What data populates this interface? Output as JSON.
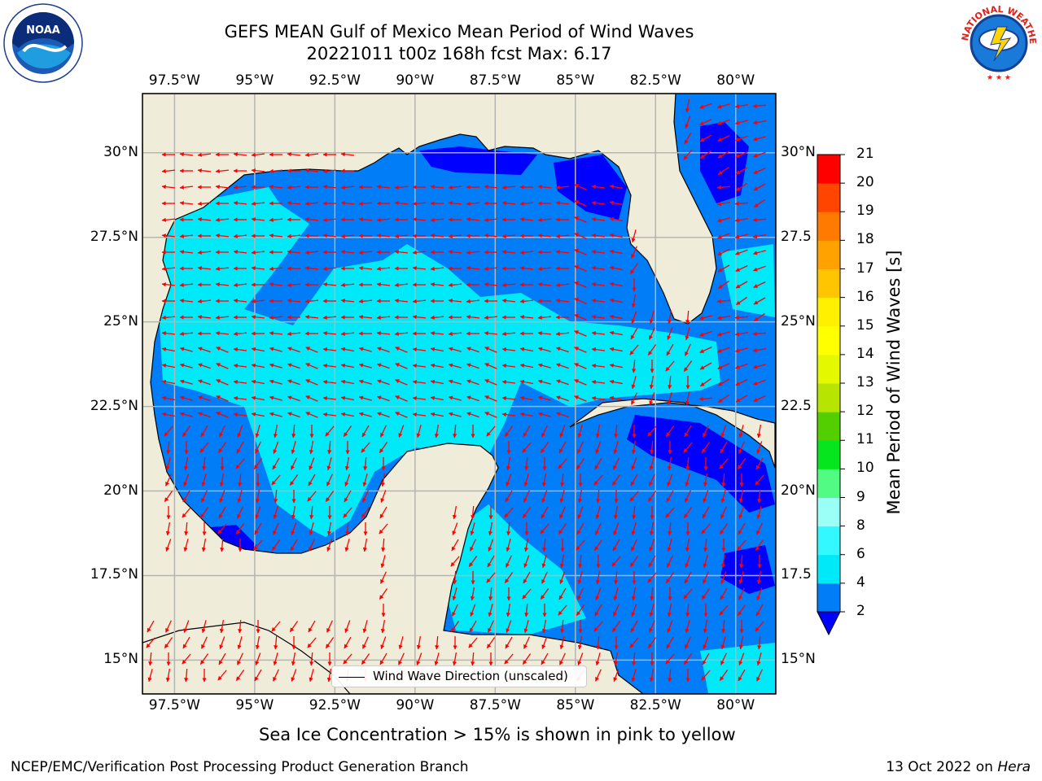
{
  "title": {
    "line1": "GEFS MEAN Gulf of Mexico Mean Period of Wind Waves",
    "line2": "20221011 t00z 168h fcst   Max: 6.17"
  },
  "logos": {
    "left": "NOAA",
    "right": "NATIONAL WEATHER SERVICE"
  },
  "map": {
    "lon_range": [
      -98.5,
      -78.75
    ],
    "lat_range": [
      14.0,
      31.75
    ],
    "lon_labels": [
      {
        "lon": -97.5,
        "text": "97.5°W"
      },
      {
        "lon": -95,
        "text": "95°W"
      },
      {
        "lon": -92.5,
        "text": "92.5°W"
      },
      {
        "lon": -90,
        "text": "90°W"
      },
      {
        "lon": -87.5,
        "text": "87.5°W"
      },
      {
        "lon": -85,
        "text": "85°W"
      },
      {
        "lon": -82.5,
        "text": "82.5°W"
      },
      {
        "lon": -80,
        "text": "80°W"
      }
    ],
    "lat_labels_left": [
      {
        "lat": 30,
        "text": "30°N"
      },
      {
        "lat": 27.5,
        "text": "27.5°N"
      },
      {
        "lat": 25,
        "text": "25°N"
      },
      {
        "lat": 22.5,
        "text": "22.5°N"
      },
      {
        "lat": 20,
        "text": "20°N"
      },
      {
        "lat": 17.5,
        "text": "17.5°N"
      },
      {
        "lat": 15,
        "text": "15°N"
      }
    ],
    "lat_labels_right": [
      {
        "lat": 30,
        "text": "30°N"
      },
      {
        "lat": 27.5,
        "text": "27.5"
      },
      {
        "lat": 25,
        "text": "25°N"
      },
      {
        "lat": 22.5,
        "text": "22.5"
      },
      {
        "lat": 20,
        "text": "20°N"
      },
      {
        "lat": 17.5,
        "text": "17.5"
      },
      {
        "lat": 15,
        "text": "15°N"
      }
    ],
    "colors": {
      "land": "#efedda",
      "ocean_base": "#007df7",
      "arrow": "#ff0000",
      "grid": "#b4b4b4"
    }
  },
  "colorbar": {
    "label": "Mean Period of Wind Waves [s]",
    "ticks": [
      "2",
      "4",
      "6",
      "8",
      "9",
      "10",
      "11",
      "12",
      "13",
      "14",
      "15",
      "16",
      "17",
      "18",
      "19",
      "20",
      "21"
    ],
    "colors": [
      "#007df7",
      "#00e9f9",
      "#33f8ff",
      "#9bfff8",
      "#52fc83",
      "#06e61e",
      "#53cf00",
      "#b7e400",
      "#e4f900",
      "#ffff00",
      "#fff000",
      "#ffc500",
      "#ffa200",
      "#ff7a00",
      "#ff4500",
      "#ff0000"
    ],
    "under_color": "#0000ff"
  },
  "legend": {
    "label": "Wind Wave Direction (unscaled)"
  },
  "footnote": "Sea Ice Concentration > 15% is shown in pink to yellow",
  "credit_left": "NCEP/EMC/Verification Post Processing Product Generation Branch",
  "credit_right": {
    "date": "13 Oct 2022 on ",
    "machine": "Hera"
  }
}
